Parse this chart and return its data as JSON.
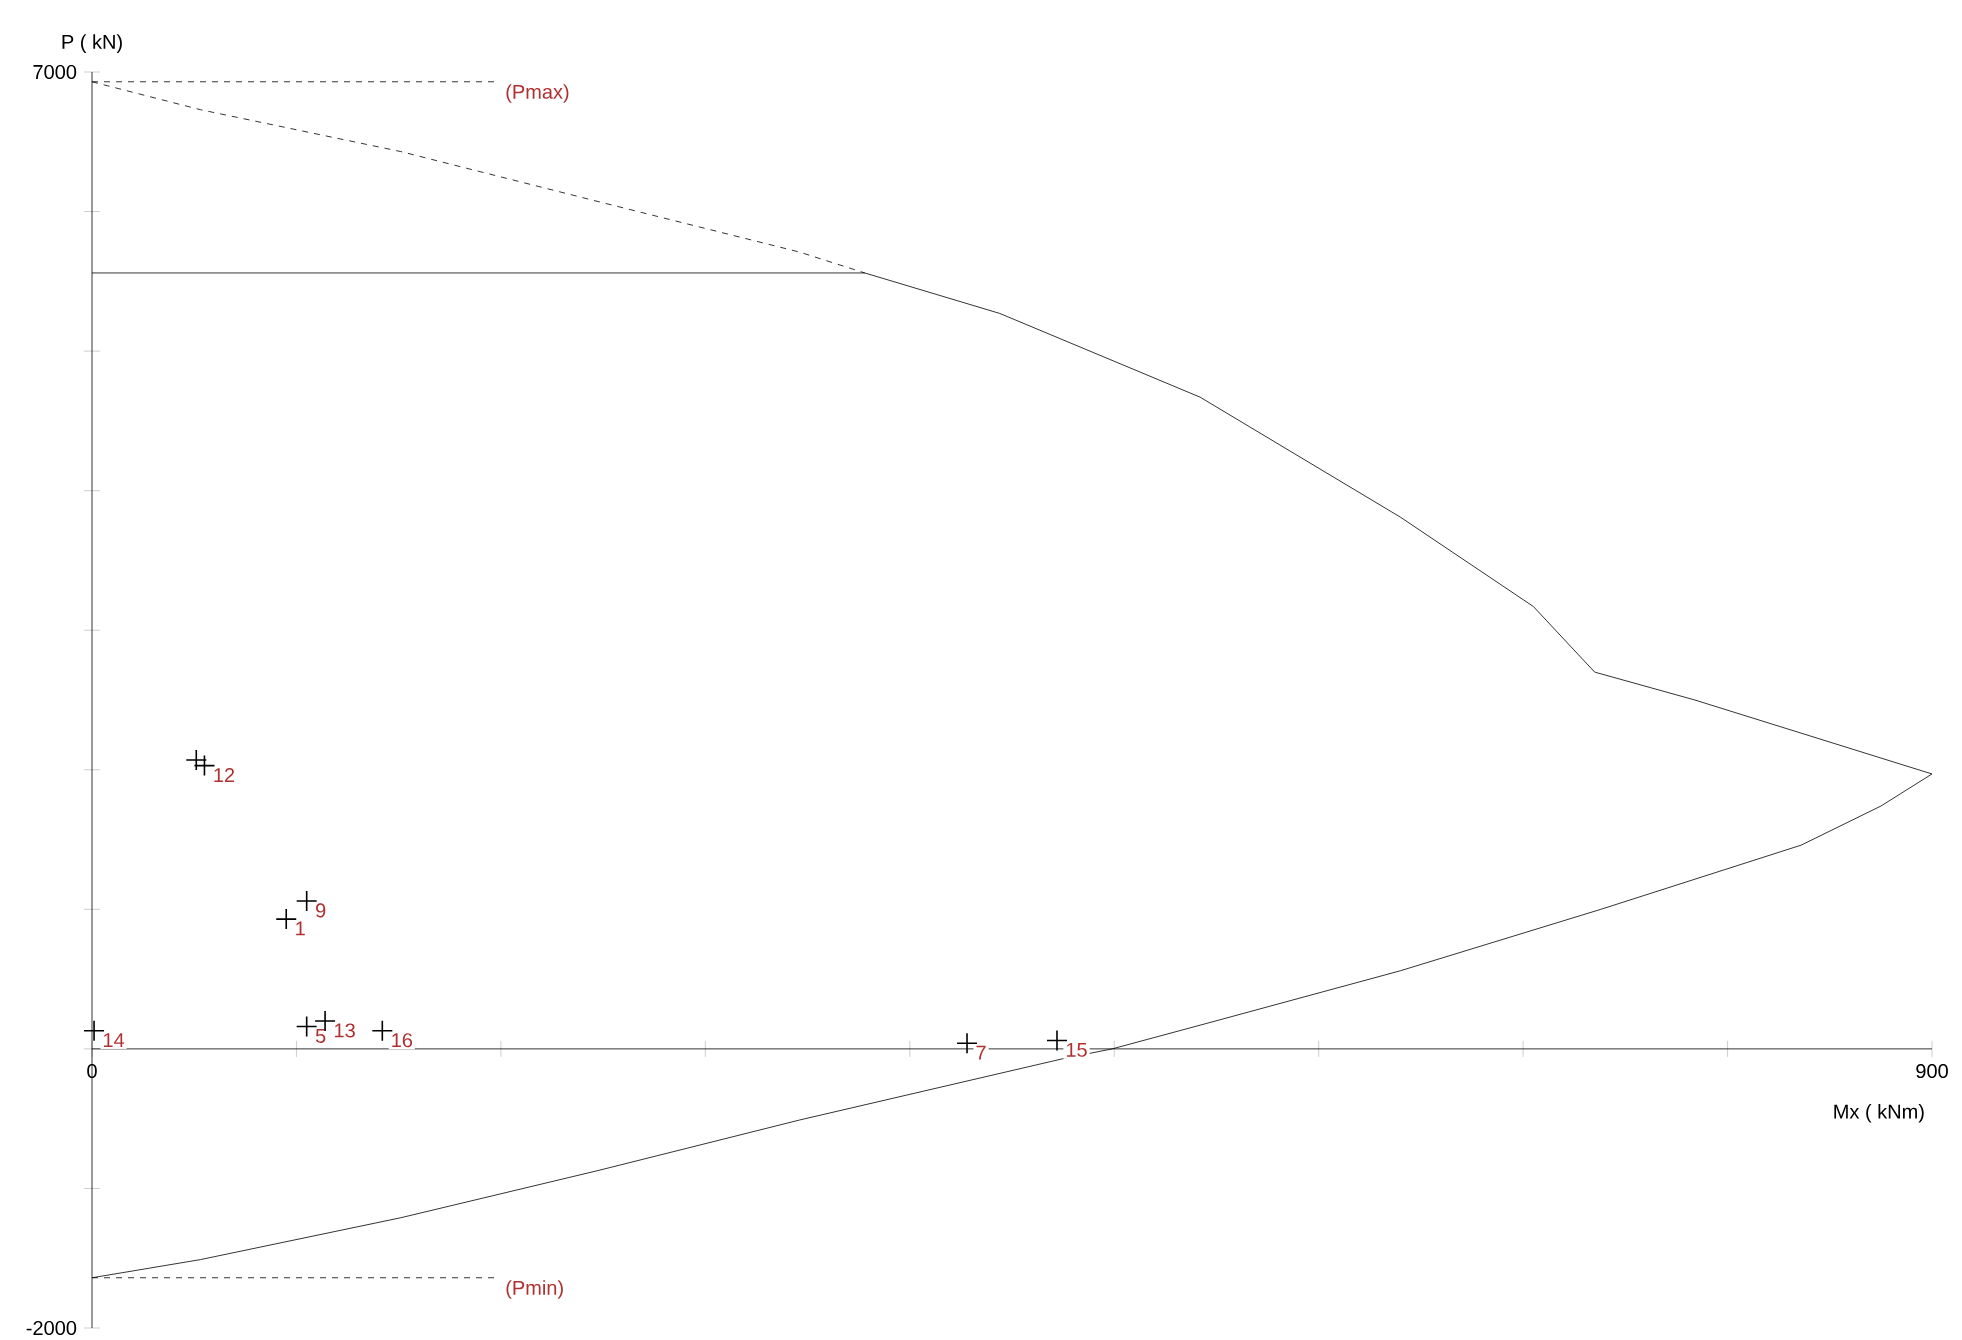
{
  "chart_data": {
    "type": "line",
    "xlabel": "Mx ( kNm)",
    "ylabel": "P ( kN)",
    "xlim": [
      0,
      900
    ],
    "ylim": [
      -2000,
      7000
    ],
    "xticks": [
      0,
      {
        "value": 100,
        "label": null
      },
      {
        "value": 200,
        "label": null
      },
      {
        "value": 300,
        "label": null
      },
      {
        "value": 400,
        "label": null
      },
      {
        "value": 500,
        "label": null
      },
      {
        "value": 600,
        "label": null
      },
      {
        "value": 700,
        "label": null
      },
      {
        "value": 800,
        "label": null
      },
      900
    ],
    "yticks": [
      -2000,
      {
        "value": -1000,
        "label": null
      },
      {
        "value": 0,
        "label": null
      },
      {
        "value": 1000,
        "label": null
      },
      {
        "value": 2000,
        "label": null
      },
      {
        "value": 3000,
        "label": null
      },
      {
        "value": 4000,
        "label": null
      },
      {
        "value": 5000,
        "label": null
      },
      {
        "value": 6000,
        "label": null
      },
      7000
    ],
    "grid": false,
    "series": [
      {
        "type": "line",
        "color": "#000000",
        "line_style": "solid",
        "x": [
          0,
          378,
          444,
          542,
          640,
          705,
          735,
          784,
          900,
          875,
          836,
          738,
          640,
          542,
          499,
          475,
          346,
          248,
          151,
          53,
          0
        ],
        "values": [
          5560,
          5560,
          5270,
          4670,
          3810,
          3170,
          2700,
          2500,
          1970,
          1740,
          1460,
          1000,
          560,
          170,
          0,
          -70,
          -510,
          -870,
          -1210,
          -1510,
          -1640
        ]
      },
      {
        "type": "line",
        "color": "#000000",
        "line_style": "dashed",
        "x": [
          0,
          53,
          151,
          248,
          346,
          378
        ],
        "values": [
          6930,
          6730,
          6430,
          6070,
          5710,
          5560
        ]
      },
      {
        "type": "line",
        "color": "#000000",
        "line_style": "dashed",
        "x": [
          0,
          198
        ],
        "values": [
          6930,
          6930
        ]
      },
      {
        "type": "line",
        "color": "#000000",
        "line_style": "dashed",
        "x": [
          0,
          198
        ],
        "values": [
          -1640,
          -1640
        ]
      },
      {
        "type": "scatter",
        "marker": "cross",
        "color": "#000000",
        "x": [
          51,
          55,
          105,
          95,
          105,
          114,
          142,
          1,
          428,
          472
        ],
        "values": [
          2070,
          2030,
          1060,
          930,
          160,
          200,
          130,
          130,
          40,
          60
        ]
      }
    ],
    "annotations": [
      {
        "text": "(Pmax)",
        "x": 198,
        "y": 6930
      },
      {
        "text": "(Pmin)",
        "x": 198,
        "y": -1640
      },
      {
        "text": "12",
        "x": 55,
        "y": 2030
      },
      {
        "text": "9",
        "x": 105,
        "y": 1060
      },
      {
        "text": "1",
        "x": 95,
        "y": 930
      },
      {
        "text": "5",
        "x": 105,
        "y": 160
      },
      {
        "text": "13",
        "x": 114,
        "y": 200
      },
      {
        "text": "16",
        "x": 142,
        "y": 130
      },
      {
        "text": "14",
        "x": 1,
        "y": 130
      },
      {
        "text": "7",
        "x": 428,
        "y": 40
      },
      {
        "text": "15",
        "x": 472,
        "y": 60
      }
    ]
  }
}
